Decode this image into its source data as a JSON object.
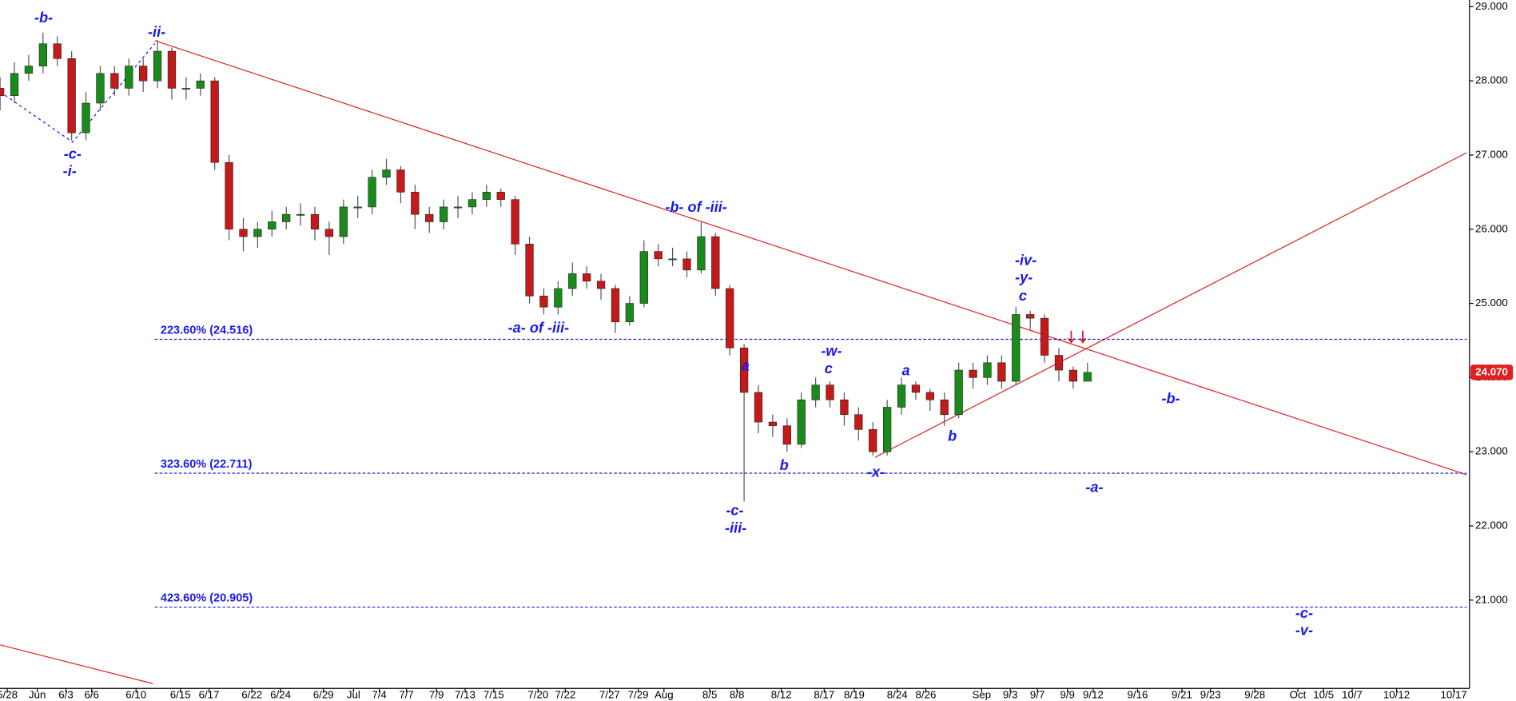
{
  "chart_data": {
    "type": "candlestick",
    "up_color": "#1a8a1a",
    "down_color": "#c41a1a",
    "xlim": [
      0,
      102.7
    ],
    "ylim": [
      19.77,
      29.09
    ],
    "xticks": [
      {
        "value": 0.5,
        "label": "5/28"
      },
      {
        "value": 2.6,
        "label": "Jun"
      },
      {
        "value": 4.6,
        "label": "6/3"
      },
      {
        "value": 6.4,
        "label": "6/6"
      },
      {
        "value": 9.5,
        "label": "6/10"
      },
      {
        "value": 12.6,
        "label": "6/15"
      },
      {
        "value": 14.6,
        "label": "6/17"
      },
      {
        "value": 17.6,
        "label": "6/22"
      },
      {
        "value": 19.6,
        "label": "6/24"
      },
      {
        "value": 22.6,
        "label": "6/29"
      },
      {
        "value": 24.7,
        "label": "Jul"
      },
      {
        "value": 26.5,
        "label": "7/4"
      },
      {
        "value": 28.4,
        "label": "7/7"
      },
      {
        "value": 30.5,
        "label": "7/9"
      },
      {
        "value": 32.5,
        "label": "7/13"
      },
      {
        "value": 34.5,
        "label": "7/15"
      },
      {
        "value": 37.6,
        "label": "7/20"
      },
      {
        "value": 39.5,
        "label": "7/22"
      },
      {
        "value": 42.6,
        "label": "7/27"
      },
      {
        "value": 44.6,
        "label": "7/29"
      },
      {
        "value": 46.4,
        "label": "Aug"
      },
      {
        "value": 49.6,
        "label": "8/5"
      },
      {
        "value": 51.5,
        "label": "8/8"
      },
      {
        "value": 54.6,
        "label": "8/12"
      },
      {
        "value": 57.6,
        "label": "8/17"
      },
      {
        "value": 59.7,
        "label": "8/19"
      },
      {
        "value": 62.7,
        "label": "8/24"
      },
      {
        "value": 64.7,
        "label": "8/26"
      },
      {
        "value": 68.6,
        "label": "Sep"
      },
      {
        "value": 70.6,
        "label": "9/3"
      },
      {
        "value": 72.5,
        "label": "9/7"
      },
      {
        "value": 74.6,
        "label": "9/9"
      },
      {
        "value": 76.4,
        "label": "9/12"
      },
      {
        "value": 79.5,
        "label": "9/16"
      },
      {
        "value": 82.6,
        "label": "9/21"
      },
      {
        "value": 84.6,
        "label": "9/23"
      },
      {
        "value": 87.7,
        "label": "9/28"
      },
      {
        "value": 90.7,
        "label": "Oct"
      },
      {
        "value": 92.5,
        "label": "10/5"
      },
      {
        "value": 94.5,
        "label": "10/7"
      },
      {
        "value": 97.6,
        "label": "10/12"
      },
      {
        "value": 101.6,
        "label": "10/17"
      }
    ],
    "yticks": [
      {
        "value": 21,
        "label": "21.000"
      },
      {
        "value": 22,
        "label": "22.000"
      },
      {
        "value": 23,
        "label": "23.000"
      },
      {
        "value": 24,
        "label": "24.000"
      },
      {
        "value": 25,
        "label": "25.000"
      },
      {
        "value": 26,
        "label": "26.000"
      },
      {
        "value": 27,
        "label": "27.000"
      },
      {
        "value": 28,
        "label": "28.000"
      },
      {
        "value": 29,
        "label": "29.000"
      }
    ],
    "x": [
      0,
      1,
      2,
      3,
      4,
      5,
      6,
      7,
      8,
      9,
      10,
      11,
      12,
      13,
      14,
      15,
      16,
      17,
      18,
      19,
      20,
      21,
      22,
      23,
      24,
      25,
      26,
      27,
      28,
      29,
      30,
      31,
      32,
      33,
      34,
      35,
      36,
      37,
      38,
      39,
      40,
      41,
      42,
      43,
      44,
      45,
      46,
      47,
      48,
      49,
      50,
      51,
      52,
      53,
      54,
      55,
      56,
      57,
      58,
      59,
      60,
      61,
      62,
      63,
      64,
      65,
      66,
      67,
      68,
      69,
      70,
      71,
      72,
      73,
      74,
      75,
      76
    ],
    "open": [
      27.9,
      27.8,
      28.1,
      28.2,
      28.5,
      28.3,
      27.3,
      27.7,
      28.1,
      27.9,
      28.2,
      28.0,
      28.4,
      27.9,
      27.9,
      28.0,
      26.9,
      26.0,
      25.9,
      26.0,
      26.1,
      26.2,
      26.2,
      26.0,
      25.9,
      26.3,
      26.3,
      26.7,
      26.8,
      26.5,
      26.2,
      26.1,
      26.3,
      26.3,
      26.4,
      26.5,
      26.4,
      25.8,
      25.1,
      24.95,
      25.2,
      25.4,
      25.3,
      25.2,
      24.75,
      25.0,
      25.7,
      25.6,
      25.6,
      25.45,
      25.9,
      25.2,
      24.4,
      23.8,
      23.4,
      23.35,
      23.1,
      23.7,
      23.9,
      23.7,
      23.5,
      23.3,
      23.0,
      23.6,
      23.9,
      23.8,
      23.7,
      23.5,
      24.1,
      24.0,
      24.2,
      23.95,
      24.85,
      24.8,
      24.3,
      24.1,
      23.95
    ],
    "high": [
      28.05,
      28.25,
      28.35,
      28.65,
      28.6,
      28.4,
      27.85,
      28.2,
      28.2,
      28.3,
      28.3,
      28.55,
      28.45,
      28.05,
      28.1,
      28.05,
      27.0,
      26.15,
      26.1,
      26.25,
      26.3,
      26.35,
      26.3,
      26.1,
      26.4,
      26.45,
      26.8,
      26.95,
      26.85,
      26.6,
      26.3,
      26.4,
      26.45,
      26.5,
      26.6,
      26.55,
      26.45,
      25.9,
      25.2,
      25.3,
      25.55,
      25.5,
      25.4,
      25.25,
      25.1,
      25.85,
      25.8,
      25.75,
      25.7,
      26.1,
      25.95,
      25.25,
      24.45,
      23.9,
      23.5,
      23.45,
      23.8,
      24.0,
      23.95,
      23.8,
      23.6,
      23.4,
      23.7,
      24.0,
      23.95,
      23.85,
      23.8,
      24.2,
      24.2,
      24.3,
      24.3,
      24.95,
      24.9,
      24.85,
      24.4,
      24.15,
      24.2
    ],
    "low": [
      27.6,
      27.7,
      28.0,
      28.1,
      28.2,
      27.2,
      27.2,
      27.6,
      27.8,
      27.8,
      27.85,
      27.9,
      27.75,
      27.75,
      27.8,
      26.8,
      25.85,
      25.7,
      25.75,
      25.9,
      26.0,
      26.05,
      25.85,
      25.65,
      25.8,
      26.15,
      26.2,
      26.6,
      26.35,
      26.0,
      25.95,
      26.0,
      26.15,
      26.2,
      26.3,
      26.3,
      25.65,
      25.0,
      24.85,
      24.85,
      25.1,
      25.2,
      25.05,
      24.6,
      24.7,
      24.95,
      25.5,
      25.5,
      25.35,
      25.4,
      25.1,
      24.3,
      22.33,
      23.25,
      23.2,
      23.0,
      23.05,
      23.6,
      23.6,
      23.35,
      23.15,
      22.95,
      22.95,
      23.5,
      23.7,
      23.55,
      23.35,
      23.45,
      23.85,
      23.9,
      23.85,
      23.9,
      24.65,
      24.2,
      23.95,
      23.85,
      23.95
    ],
    "close": [
      27.8,
      28.1,
      28.2,
      28.5,
      28.3,
      27.3,
      27.7,
      28.1,
      27.9,
      28.2,
      28.0,
      28.4,
      27.9,
      27.9,
      28.0,
      26.9,
      26.0,
      25.9,
      26.0,
      26.1,
      26.2,
      26.2,
      26.0,
      25.9,
      26.3,
      26.3,
      26.7,
      26.8,
      26.5,
      26.2,
      26.1,
      26.3,
      26.3,
      26.4,
      26.5,
      26.4,
      25.8,
      25.1,
      24.95,
      25.2,
      25.4,
      25.3,
      25.2,
      24.75,
      25.0,
      25.7,
      25.6,
      25.6,
      25.45,
      25.9,
      25.2,
      24.4,
      23.8,
      23.4,
      23.35,
      23.1,
      23.7,
      23.9,
      23.7,
      23.5,
      23.3,
      23.0,
      23.6,
      23.9,
      23.8,
      23.7,
      23.5,
      24.1,
      24.0,
      24.2,
      23.95,
      24.85,
      24.8,
      24.3,
      24.1,
      23.95,
      24.07
    ],
    "fib_levels": [
      {
        "value": 24.516,
        "label": "223.60% (24.516)"
      },
      {
        "value": 22.711,
        "label": "323.60% (22.711)"
      },
      {
        "value": 20.905,
        "label": "423.60% (20.905)"
      }
    ],
    "last_price": {
      "value": 24.07,
      "label": "24.070"
    },
    "annotations": [
      "-b-",
      "-ii-",
      "-c-",
      "-i-",
      "-b- of -iii-",
      "-a- of -iii-",
      "a",
      "-w-",
      "c",
      "a",
      "b",
      "b",
      "-x-",
      "-c-",
      "-iii-",
      "-iv-",
      "-y-",
      "c",
      "-b-",
      "-a-",
      "-c-",
      "-v-"
    ]
  }
}
